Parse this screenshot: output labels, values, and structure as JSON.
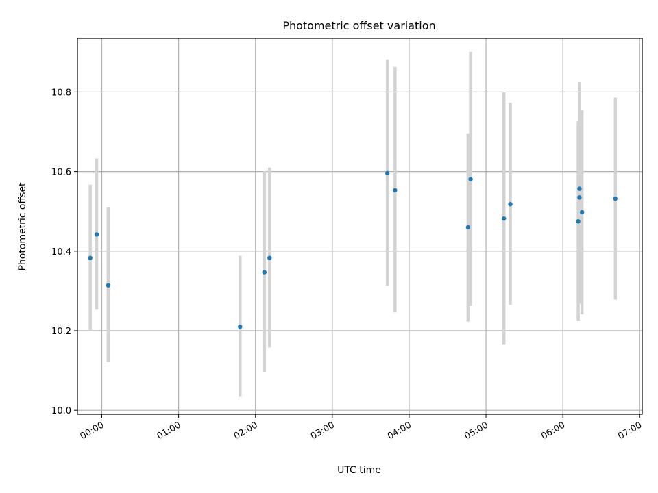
{
  "chart_data": {
    "type": "scatter",
    "title": "Photometric offset variation",
    "xlabel": "UTC time",
    "ylabel": "Photometric offset",
    "x_unit": "UTC time (HH:MM)",
    "xlim": [
      "-00:19",
      "07:02"
    ],
    "ylim": [
      9.99,
      10.935
    ],
    "xticks": [
      "00:00",
      "01:00",
      "02:00",
      "03:00",
      "04:00",
      "05:00",
      "06:00",
      "07:00"
    ],
    "yticks": [
      "10.0",
      "10.2",
      "10.4",
      "10.6",
      "10.8"
    ],
    "grid": true,
    "marker_color": "#1f77b4",
    "errorbar_color": "#d3d3d3",
    "points": [
      {
        "x": "-00:09",
        "y": 10.383,
        "y_low": 10.2,
        "y_high": 10.567
      },
      {
        "x": "-00:04",
        "y": 10.442,
        "y_low": 10.253,
        "y_high": 10.633
      },
      {
        "x": "00:05",
        "y": 10.314,
        "y_low": 10.121,
        "y_high": 10.51
      },
      {
        "x": "01:48",
        "y": 10.21,
        "y_low": 10.034,
        "y_high": 10.388
      },
      {
        "x": "02:07",
        "y": 10.347,
        "y_low": 10.095,
        "y_high": 10.601
      },
      {
        "x": "02:11",
        "y": 10.383,
        "y_low": 10.158,
        "y_high": 10.61
      },
      {
        "x": "03:43",
        "y": 10.596,
        "y_low": 10.313,
        "y_high": 10.882
      },
      {
        "x": "03:49",
        "y": 10.553,
        "y_low": 10.246,
        "y_high": 10.863
      },
      {
        "x": "04:46",
        "y": 10.46,
        "y_low": 10.223,
        "y_high": 10.696
      },
      {
        "x": "04:48",
        "y": 10.581,
        "y_low": 10.262,
        "y_high": 10.901
      },
      {
        "x": "05:14",
        "y": 10.482,
        "y_low": 10.165,
        "y_high": 10.8
      },
      {
        "x": "05:19",
        "y": 10.518,
        "y_low": 10.265,
        "y_high": 10.773
      },
      {
        "x": "06:12",
        "y": 10.475,
        "y_low": 10.224,
        "y_high": 10.728
      },
      {
        "x": "06:13",
        "y": 10.557,
        "y_low": 10.291,
        "y_high": 10.825
      },
      {
        "x": "06:13",
        "y": 10.535,
        "y_low": 10.268,
        "y_high": 10.82
      },
      {
        "x": "06:15",
        "y": 10.498,
        "y_low": 10.241,
        "y_high": 10.755
      },
      {
        "x": "06:41",
        "y": 10.532,
        "y_low": 10.278,
        "y_high": 10.786
      }
    ]
  }
}
